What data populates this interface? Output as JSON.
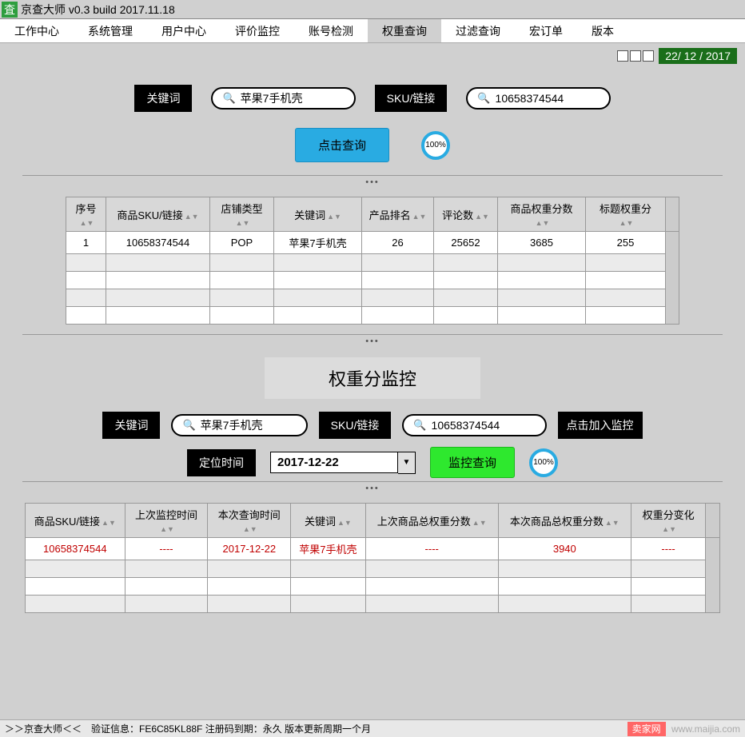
{
  "titlebar": {
    "icon_glyph": "査",
    "title": "京查大师 v0.3 build 2017.11.18"
  },
  "menu": {
    "items": [
      "工作中心",
      "系统管理",
      "用户中心",
      "评价监控",
      "账号检测",
      "权重查询",
      "过滤查询",
      "宏订单",
      "版本"
    ],
    "activeIndex": 5
  },
  "dateBadge": "22/ 12 / 2017",
  "searchTop": {
    "keywordLabel": "关键词",
    "keywordValue": "苹果7手机壳",
    "skuLabel": "SKU/链接",
    "skuValue": "10658374544",
    "queryBtn": "点击查询",
    "progress": "100%"
  },
  "table1": {
    "headers": [
      "序号",
      "商品SKU/链接",
      "店铺类型",
      "关键词",
      "产品排名",
      "评论数",
      "商品权重分数",
      "标题权重分"
    ],
    "row": [
      "1",
      "10658374544",
      "POP",
      "苹果7手机壳",
      "26",
      "25652",
      "3685",
      "255"
    ]
  },
  "sectionTitle": "权重分监控",
  "monitor": {
    "keywordLabel": "关键词",
    "keywordValue": "苹果7手机壳",
    "skuLabel": "SKU/链接",
    "skuValue": "10658374544",
    "addBtn": "点击加入监控",
    "dateLabel": "定位时间",
    "dateValue": "2017-12-22",
    "queryBtn": "监控查询",
    "progress": "100%"
  },
  "table2": {
    "headers": [
      "商品SKU/链接",
      "上次监控时间",
      "本次查询时间",
      "关键词",
      "上次商品总权重分数",
      "本次商品总权重分数",
      "权重分变化"
    ],
    "row": [
      "10658374544",
      "----",
      "2017-12-22",
      "苹果7手机壳",
      "----",
      "3940",
      "----"
    ]
  },
  "statusbar": {
    "text": "＞＞京查大师＜＜　验证信息：FE6C85KL88F 注册码到期：永久 版本更新周期一个月",
    "wm1": "卖家网",
    "wm2": "www.maijia.com"
  }
}
